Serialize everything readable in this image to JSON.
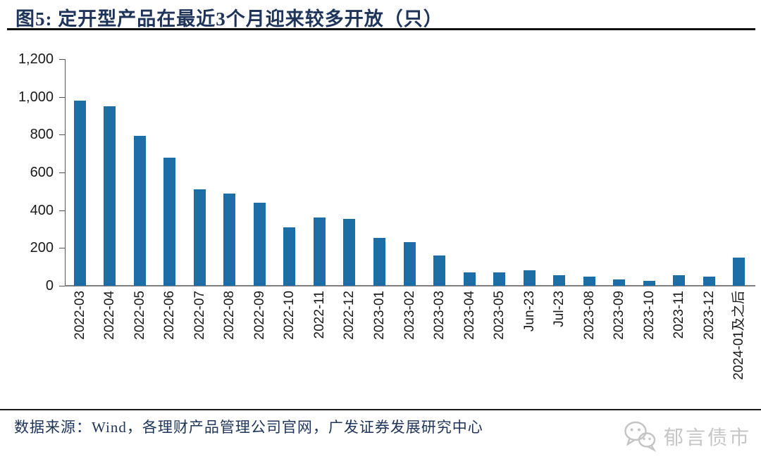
{
  "title": "图5:  定开型产品在最近3个月迎来较多开放（只）",
  "chart_data": {
    "type": "bar",
    "title": "定开型产品在最近3个月迎来较多开放（只）",
    "categories": [
      "2022-03",
      "2022-04",
      "2022-05",
      "2022-06",
      "2022-07",
      "2022-08",
      "2022-09",
      "2022-10",
      "2022-11",
      "2022-12",
      "2023-01",
      "2023-02",
      "2023-03",
      "2023-04",
      "2023-05",
      "Jun-23",
      "Jul-23",
      "2023-08",
      "2023-09",
      "2023-10",
      "2023-11",
      "2023-12",
      "2024-01及之后"
    ],
    "values": [
      980,
      950,
      795,
      680,
      510,
      490,
      440,
      310,
      360,
      355,
      255,
      230,
      160,
      70,
      70,
      82,
      55,
      48,
      33,
      25,
      56,
      48,
      150
    ],
    "xlabel": "",
    "ylabel": "",
    "ylim": [
      0,
      1200
    ],
    "ytick_interval": 200,
    "ytick_labels": [
      "0",
      "200",
      "400",
      "600",
      "800",
      "1,000",
      "1,200"
    ],
    "grid": false,
    "legend_position": "none",
    "bar_color": "#1d6da6"
  },
  "footer": {
    "source": "数据来源：Wind，各理财产品管理公司官网，广发证券发展研究中心"
  },
  "watermark": {
    "icon": "wechat-icon",
    "text": "郁言债市"
  },
  "colors": {
    "title_navy": "#1e345a",
    "bar_blue": "#1d6da6",
    "axis_grey": "#7f7f7f",
    "watermark_grey": "#c6c6c6"
  }
}
